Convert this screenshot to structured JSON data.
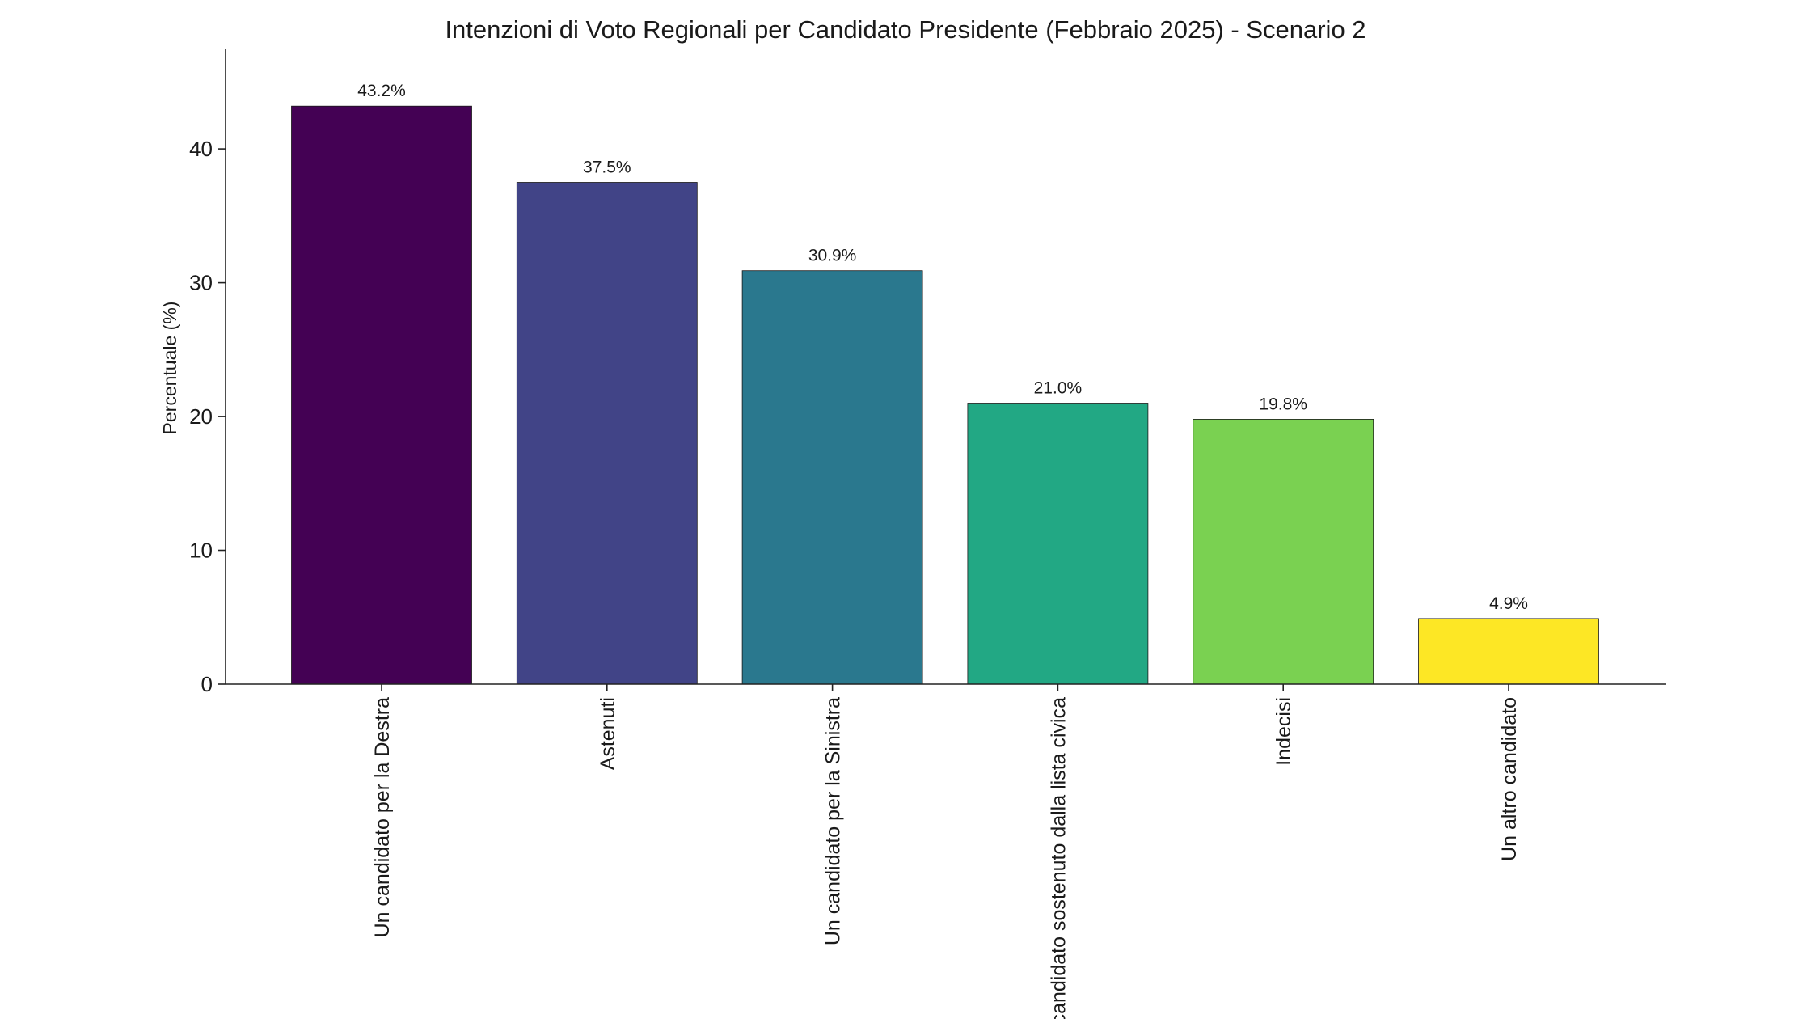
{
  "chart_data": {
    "type": "bar",
    "title": "Intenzioni di Voto Regionali per Candidato Presidente (Febbraio 2025) - Scenario 2",
    "xlabel": "",
    "ylabel": "Percentuale (%)",
    "ylim": [
      0,
      47.5
    ],
    "yticks": [
      0,
      10,
      20,
      30,
      40
    ],
    "grid": false,
    "legend": "none",
    "categories": [
      "Un candidato per la Destra",
      "Astenuti",
      "Un candidato per la Sinistra",
      "Un candidato sostenuto dalla lista civica",
      "Indecisi",
      "Un altro candidato"
    ],
    "values": [
      43.2,
      37.5,
      30.9,
      21.0,
      19.8,
      4.9
    ],
    "value_labels": [
      "43.2%",
      "37.5%",
      "30.9%",
      "21.0%",
      "19.8%",
      "4.9%"
    ],
    "colors": [
      "#440154",
      "#414487",
      "#2a788e",
      "#22a884",
      "#7ad151",
      "#fde725"
    ]
  }
}
